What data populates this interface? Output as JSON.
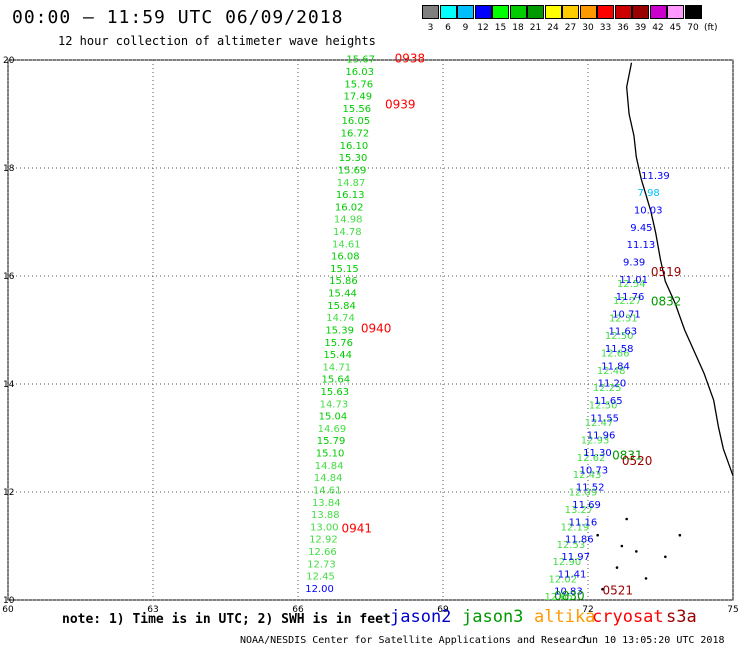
{
  "header": {
    "title": "00:00 – 11:59 UTC 06/09/2018",
    "subtitle": "12 hour collection of altimeter wave heights"
  },
  "color_scale": {
    "unit": "(ft)",
    "bins": [
      {
        "label": "3",
        "color": "#7f7f7f"
      },
      {
        "label": "6",
        "color": "#00ffff"
      },
      {
        "label": "9",
        "color": "#00bfff"
      },
      {
        "label": "12",
        "color": "#0000ff"
      },
      {
        "label": "15",
        "color": "#00ff00"
      },
      {
        "label": "18",
        "color": "#00cc00"
      },
      {
        "label": "21",
        "color": "#009900"
      },
      {
        "label": "24",
        "color": "#ffff00"
      },
      {
        "label": "27",
        "color": "#ffcc00"
      },
      {
        "label": "30",
        "color": "#ff9900"
      },
      {
        "label": "33",
        "color": "#ff0000"
      },
      {
        "label": "36",
        "color": "#cc0000"
      },
      {
        "label": "39",
        "color": "#990000"
      },
      {
        "label": "42",
        "color": "#cc00cc"
      },
      {
        "label": "45",
        "color": "#ff99ff"
      },
      {
        "label": "70",
        "color": "#000000"
      }
    ]
  },
  "map": {
    "lon_ticks": [
      "60",
      "63",
      "66",
      "69",
      "72",
      "75"
    ],
    "lat_ticks": [
      "10",
      "12",
      "14",
      "16",
      "18",
      "20"
    ],
    "lon_range": [
      60,
      75
    ],
    "lat_range": [
      10,
      20
    ],
    "track_west": {
      "values": [
        "15.67",
        "16.03",
        "15.76",
        "17.49",
        "15.56",
        "16.05",
        "16.72",
        "16.10",
        "15.30",
        "15.69",
        "14.87",
        "16.13",
        "16.02",
        "14.98",
        "14.78",
        "14.61",
        "16.08",
        "15.15",
        "15.86",
        "15.44",
        "15.84",
        "14.74",
        "15.39",
        "15.76",
        "15.44",
        "14.71",
        "15.64",
        "15.63",
        "14.73",
        "15.04",
        "14.69",
        "15.79",
        "15.10",
        "14.84",
        "14.84",
        "14.61",
        "13.84",
        "13.88",
        "13.00",
        "12.92",
        "12.66",
        "12.73",
        "12.45",
        "12.00"
      ],
      "colors": [
        "#00cc00",
        "#00cc00",
        "#00cc00",
        "#00cc00",
        "#00cc00",
        "#00cc00",
        "#00cc00",
        "#00cc00",
        "#00cc00",
        "#00cc00",
        "#44dd44",
        "#00cc00",
        "#00cc00",
        "#44dd44",
        "#44dd44",
        "#44dd44",
        "#00cc00",
        "#00cc00",
        "#00cc00",
        "#00cc00",
        "#00cc00",
        "#44dd44",
        "#00cc00",
        "#00cc00",
        "#00cc00",
        "#44dd44",
        "#00cc00",
        "#00cc00",
        "#44dd44",
        "#00cc00",
        "#44dd44",
        "#00cc00",
        "#00cc00",
        "#44dd44",
        "#44dd44",
        "#44dd44",
        "#44dd44",
        "#44dd44",
        "#44dd44",
        "#44dd44",
        "#44dd44",
        "#44dd44",
        "#44dd44",
        "#0000ff"
      ],
      "lon_start": 67.0,
      "lon_end": 66.15,
      "lat_start": 19.95,
      "lat_end": 10.15
    },
    "track_east": {
      "values": [
        "11.39",
        "7.98",
        "10.03",
        "9.45",
        "11.13",
        "9.39",
        "11.01",
        "11.76",
        "10.71",
        "11.63",
        "11.58",
        "11.84",
        "11.20",
        "11.65",
        "11.55",
        "11.96",
        "11.30",
        "10.73",
        "11.52",
        "11.69",
        "11.16",
        "11.86",
        "11.97",
        "11.41",
        "10.83"
      ],
      "colors": [
        "#0000ff",
        "#00bfff",
        "#0000ff",
        "#0000ff",
        "#0000ff",
        "#0000ff",
        "#0000ff",
        "#0000ff",
        "#0000ff",
        "#0000ff",
        "#0000ff",
        "#0000ff",
        "#0000ff",
        "#0000ff",
        "#0000ff",
        "#0000ff",
        "#0000ff",
        "#0000ff",
        "#0000ff",
        "#0000ff",
        "#0000ff",
        "#0000ff",
        "#0000ff",
        "#0000ff",
        "#0000ff"
      ],
      "lon_start": 73.1,
      "lon_end": 71.3,
      "lat_start": 17.8,
      "lat_end": 10.1
    },
    "track_green": {
      "values": [
        "12.54",
        "12.27",
        "12.31",
        "12.50",
        "12.66",
        "12.48",
        "12.25",
        "12.50",
        "12.47",
        "12.93",
        "12.62",
        "12.43",
        "12.09",
        "13.27",
        "12.19",
        "12.53",
        "12.90",
        "12.02",
        "12.65"
      ],
      "color": "#44dd44",
      "lon_start": 72.6,
      "lon_end": 71.1,
      "lat_start": 15.8,
      "lat_end": 10.0
    },
    "pass_labels": [
      {
        "text": "0938",
        "color": "#ff0000",
        "lon": 68.0,
        "lat": 19.95
      },
      {
        "text": "0939",
        "color": "#ff0000",
        "lon": 67.8,
        "lat": 19.1
      },
      {
        "text": "0940",
        "color": "#ff0000",
        "lon": 67.3,
        "lat": 14.95
      },
      {
        "text": "0941",
        "color": "#ff0000",
        "lon": 66.9,
        "lat": 11.25
      },
      {
        "text": "0519",
        "color": "#990000",
        "lon": 73.3,
        "lat": 16.0
      },
      {
        "text": "0832",
        "color": "#009900",
        "lon": 73.3,
        "lat": 15.45
      },
      {
        "text": "0831",
        "color": "#009900",
        "lon": 72.5,
        "lat": 12.6
      },
      {
        "text": "0520",
        "color": "#990000",
        "lon": 72.7,
        "lat": 12.5
      },
      {
        "text": "0521",
        "color": "#990000",
        "lon": 72.3,
        "lat": 10.1
      },
      {
        "text": "0830",
        "color": "#009900",
        "lon": 71.3,
        "lat": 10.0
      }
    ]
  },
  "footer": {
    "note": "note: 1) Time is in UTC; 2) SWH is in feet",
    "legend": [
      {
        "label": "jason2",
        "color": "#0000cc"
      },
      {
        "label": "jason3",
        "color": "#009900"
      },
      {
        "label": "altika",
        "color": "#ff9900"
      },
      {
        "label": "cryosat",
        "color": "#ff0000"
      },
      {
        "label": "s3a",
        "color": "#990000"
      }
    ],
    "credit": "NOAA/NESDIS Center for Satellite Applications and Research",
    "timestamp": "Jun 10 13:05:20 UTC 2018"
  }
}
